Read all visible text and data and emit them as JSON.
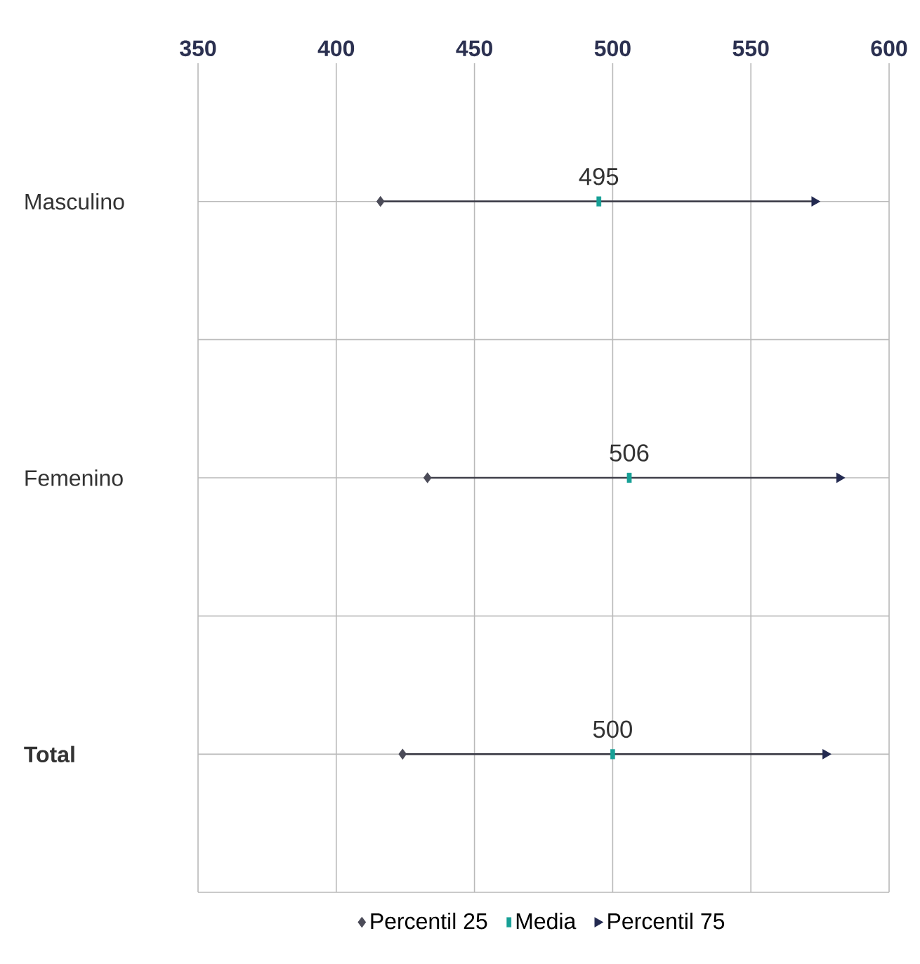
{
  "chart_data": {
    "type": "scatter",
    "orientation": "horizontal",
    "categories": [
      "Masculino",
      "Femenino",
      "**Total**"
    ],
    "xlim": [
      350,
      600
    ],
    "xticks": [
      350,
      400,
      450,
      500,
      550,
      600
    ],
    "grid": true,
    "legend": "bottom",
    "series": [
      {
        "name": "Percentil 25",
        "color": "#4b4b58",
        "marker": "diamond",
        "values": [
          416,
          433,
          424
        ]
      },
      {
        "name": "Media",
        "color": "#17a096",
        "marker": "square",
        "values": [
          495,
          506,
          500
        ],
        "value_labels": [
          "495",
          "506",
          "500"
        ]
      },
      {
        "name": "Percentil 75",
        "color": "#232a50",
        "marker": "triangle",
        "values": [
          573,
          582,
          577
        ]
      }
    ]
  }
}
